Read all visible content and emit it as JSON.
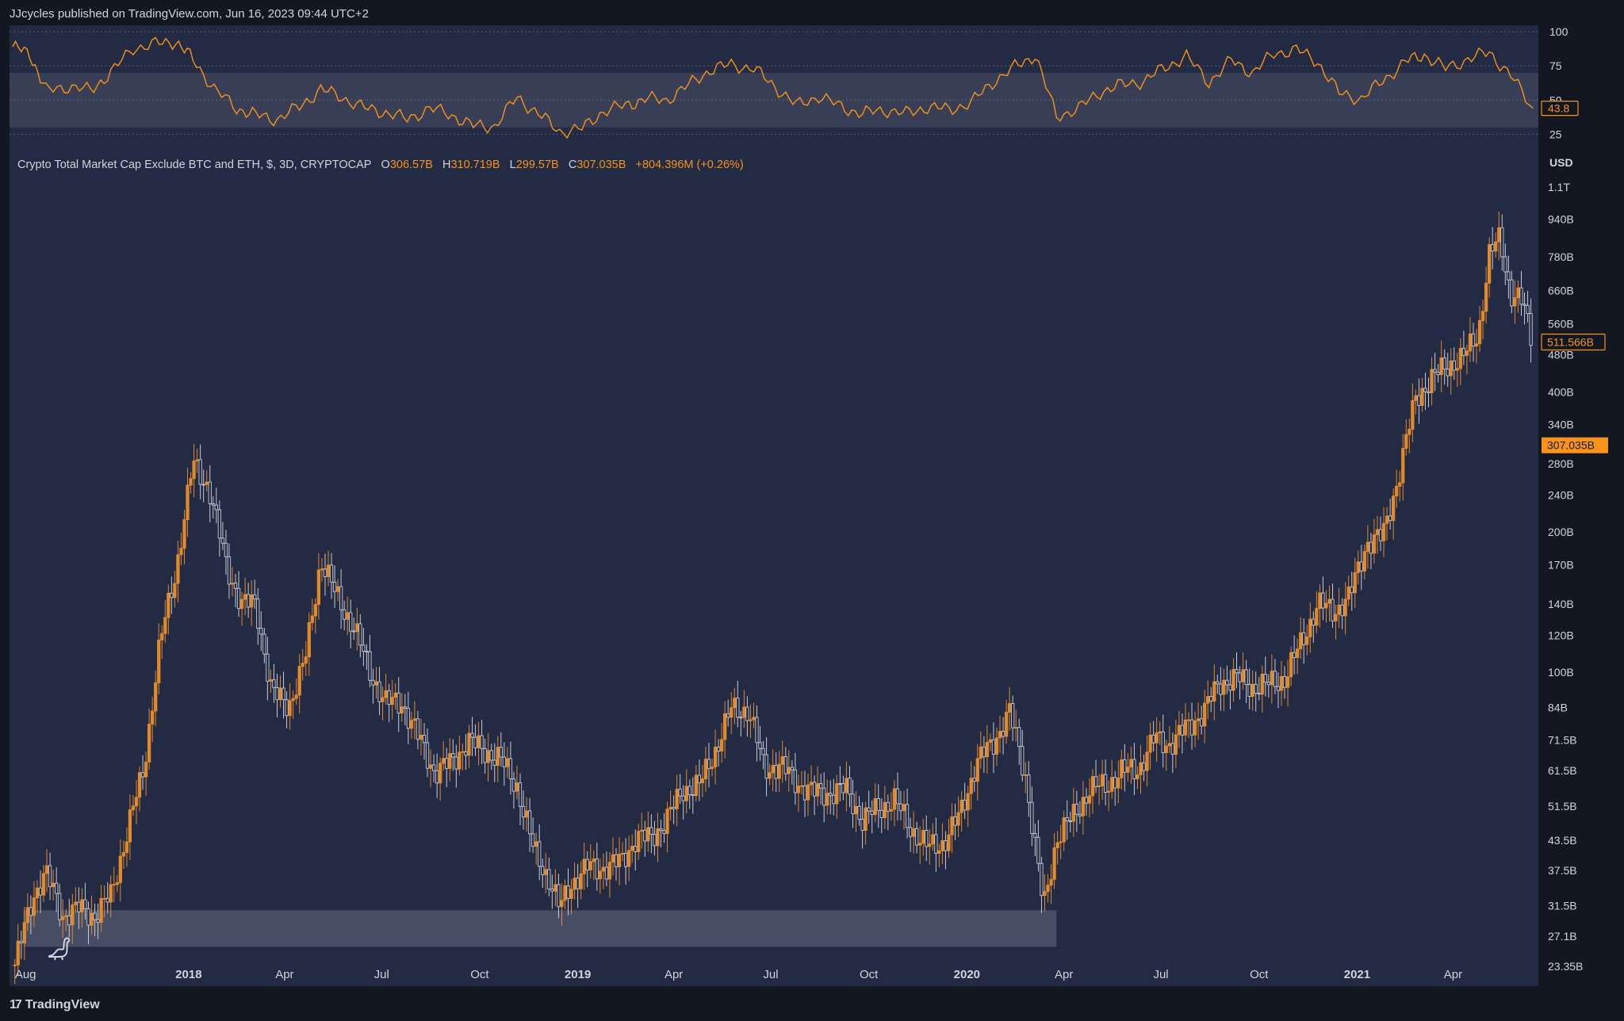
{
  "header": {
    "publish_line": "JJcycles published on TradingView.com, Jun 16, 2023 09:44 UTC+2"
  },
  "legend": {
    "symbol": "Crypto Total Market Cap Exclude BTC and ETH, $, 3D, CRYPTOCAP",
    "o_label": "O",
    "o_value": "306.57B",
    "h_label": "H",
    "h_value": "310.719B",
    "l_label": "L",
    "l_value": "299.57B",
    "c_label": "C",
    "c_value": "307.035B",
    "change": "+804.396M (+0.26%)"
  },
  "footer": {
    "brand": "TradingView",
    "brand_mark": "17"
  },
  "icons": {
    "logo": "tradingview-logo-icon",
    "dino": "dino-icon"
  },
  "colors": {
    "background": "#222a44",
    "frame": "#131722",
    "accent": "#f7931a",
    "up": "#e08a2c",
    "down": "#c7cbd6",
    "band": "#4a4f66",
    "text": "#d1d4dc"
  },
  "chart_data": [
    {
      "type": "line",
      "title": "",
      "series_name": "",
      "ylim": [
        20,
        100
      ],
      "yticks": [
        100,
        75,
        50,
        25
      ],
      "band": [
        30,
        70
      ],
      "last_value_label": "43.8",
      "x": [
        "2017-07-20",
        "2017-08-05",
        "2017-08-20",
        "2017-09-10",
        "2017-10-01",
        "2017-10-20",
        "2017-11-10",
        "2017-12-01",
        "2017-12-20",
        "2018-01-05",
        "2018-01-25",
        "2018-02-15",
        "2018-03-05",
        "2018-03-25",
        "2018-04-15",
        "2018-05-05",
        "2018-05-25",
        "2018-06-15",
        "2018-07-05",
        "2018-07-25",
        "2018-08-15",
        "2018-09-05",
        "2018-09-25",
        "2018-10-15",
        "2018-11-05",
        "2018-11-25",
        "2018-12-15",
        "2019-01-05",
        "2019-01-25",
        "2019-02-15",
        "2019-03-05",
        "2019-03-25",
        "2019-04-15",
        "2019-05-05",
        "2019-05-25",
        "2019-06-15",
        "2019-07-05",
        "2019-07-25",
        "2019-08-15",
        "2019-09-05",
        "2019-09-25",
        "2019-10-15",
        "2019-11-05",
        "2019-11-25",
        "2019-12-15",
        "2020-01-05",
        "2020-01-25",
        "2020-02-15",
        "2020-03-05",
        "2020-03-25",
        "2020-04-15",
        "2020-05-05",
        "2020-05-25",
        "2020-06-15",
        "2020-07-05",
        "2020-07-25",
        "2020-08-15",
        "2020-09-05",
        "2020-09-25",
        "2020-10-15",
        "2020-11-05",
        "2020-11-25",
        "2020-12-15",
        "2021-01-05",
        "2021-01-25",
        "2021-02-15",
        "2021-03-05",
        "2021-03-25",
        "2021-04-15",
        "2021-05-05",
        "2021-05-25",
        "2021-06-15"
      ],
      "values": [
        89,
        84,
        57,
        60,
        57,
        70,
        88,
        91,
        93,
        80,
        58,
        44,
        39,
        36,
        45,
        58,
        52,
        44,
        41,
        36,
        44,
        39,
        31,
        31,
        52,
        40,
        27,
        29,
        42,
        46,
        51,
        50,
        61,
        72,
        76,
        73,
        60,
        46,
        53,
        45,
        40,
        43,
        40,
        45,
        43,
        48,
        63,
        74,
        83,
        38,
        44,
        56,
        61,
        64,
        74,
        82,
        63,
        79,
        70,
        84,
        87,
        78,
        55,
        51,
        64,
        78,
        83,
        73,
        80,
        85,
        68,
        44
      ]
    },
    {
      "type": "candlestick",
      "title": "Crypto Total Market Cap Exclude BTC and ETH, $, 3D, CRYPTOCAP",
      "yscale": "log",
      "ylim": [
        21.5,
        1200
      ],
      "ylabel": "USD",
      "y_unit": "B",
      "yticks": [
        "1.1T",
        "940B",
        "780B",
        "660B",
        "560B",
        "480B",
        "400B",
        "340B",
        "280B",
        "240B",
        "200B",
        "170B",
        "140B",
        "120B",
        "100B",
        "84B",
        "71.5B",
        "61.5B",
        "51.5B",
        "43.5B",
        "37.5B",
        "31.5B",
        "27.1B",
        "23.35B"
      ],
      "ytick_values": [
        1100,
        940,
        780,
        660,
        560,
        480,
        400,
        340,
        280,
        240,
        200,
        170,
        140,
        120,
        100,
        84,
        71.5,
        61.5,
        51.5,
        43.5,
        37.5,
        31.5,
        27.1,
        23.35
      ],
      "x_axis": [
        "Aug",
        "2018",
        "Apr",
        "Jul",
        "Oct",
        "2019",
        "Apr",
        "Jul",
        "Oct",
        "2020",
        "Apr",
        "Jul",
        "Oct",
        "2021",
        "Apr"
      ],
      "x_axis_dates": [
        "2017-08-01",
        "2018-01-01",
        "2018-04-01",
        "2018-07-01",
        "2018-10-01",
        "2019-01-01",
        "2019-04-01",
        "2019-07-01",
        "2019-10-01",
        "2020-01-01",
        "2020-04-01",
        "2020-07-01",
        "2020-10-01",
        "2021-01-01",
        "2021-04-01"
      ],
      "x_axis_bold": [
        "2018",
        "2019",
        "2020",
        "2021"
      ],
      "support_zone": {
        "from": "2017-08-05",
        "to": "2020-03-25",
        "low": 25.7,
        "high": 30.8
      },
      "price_labels": [
        {
          "value": 511.566,
          "text": "511.566B",
          "style": "outline"
        },
        {
          "value": 307.035,
          "text": "307.035B",
          "style": "filled"
        }
      ],
      "close_path": {
        "x": [
          "2017-07-22",
          "2017-08-08",
          "2017-08-20",
          "2017-09-05",
          "2017-09-20",
          "2017-10-05",
          "2017-10-20",
          "2017-11-05",
          "2017-11-20",
          "2017-12-05",
          "2017-12-20",
          "2018-01-05",
          "2018-01-20",
          "2018-02-05",
          "2018-02-20",
          "2018-03-05",
          "2018-03-20",
          "2018-04-05",
          "2018-04-20",
          "2018-05-05",
          "2018-05-20",
          "2018-06-05",
          "2018-06-20",
          "2018-07-05",
          "2018-07-20",
          "2018-08-05",
          "2018-08-20",
          "2018-09-05",
          "2018-09-20",
          "2018-10-05",
          "2018-10-20",
          "2018-11-05",
          "2018-11-20",
          "2018-12-05",
          "2018-12-15",
          "2018-12-25",
          "2019-01-10",
          "2019-01-25",
          "2019-02-10",
          "2019-02-25",
          "2019-03-10",
          "2019-03-25",
          "2019-04-10",
          "2019-04-25",
          "2019-05-10",
          "2019-05-25",
          "2019-06-10",
          "2019-06-25",
          "2019-07-10",
          "2019-07-25",
          "2019-08-10",
          "2019-08-25",
          "2019-09-10",
          "2019-09-25",
          "2019-10-10",
          "2019-10-25",
          "2019-11-10",
          "2019-11-25",
          "2019-12-10",
          "2019-12-25",
          "2020-01-10",
          "2020-01-25",
          "2020-02-10",
          "2020-02-25",
          "2020-03-13",
          "2020-03-25",
          "2020-04-10",
          "2020-04-25",
          "2020-05-10",
          "2020-05-25",
          "2020-06-10",
          "2020-06-25",
          "2020-07-10",
          "2020-07-25",
          "2020-08-10",
          "2020-08-25",
          "2020-09-10",
          "2020-09-25",
          "2020-10-10",
          "2020-10-25",
          "2020-11-10",
          "2020-11-25",
          "2020-12-10",
          "2020-12-25",
          "2021-01-10",
          "2021-01-25",
          "2021-02-10",
          "2021-02-25",
          "2021-03-10",
          "2021-03-25",
          "2021-04-10",
          "2021-04-25",
          "2021-05-05",
          "2021-05-15",
          "2021-05-25",
          "2021-06-05",
          "2021-06-15"
        ],
        "y": [
          23.5,
          33,
          37,
          30,
          31,
          30,
          33,
          46,
          62,
          115,
          165,
          280,
          250,
          170,
          140,
          140,
          90,
          85,
          105,
          175,
          145,
          125,
          100,
          86,
          86,
          72,
          61,
          64,
          71,
          68,
          65,
          57,
          42,
          36,
          31,
          35,
          38,
          38,
          39,
          44,
          44,
          48,
          56,
          57,
          68,
          83,
          83,
          62,
          63,
          58,
          55,
          55,
          56,
          48,
          51,
          53,
          46,
          42,
          43,
          49,
          64,
          70,
          82,
          60,
          31,
          44,
          49,
          56,
          57,
          61,
          62,
          72,
          70,
          76,
          82,
          95,
          97,
          93,
          94,
          97,
          116,
          140,
          135,
          145,
          190,
          195,
          270,
          390,
          420,
          455,
          470,
          540,
          780,
          860,
          650,
          620,
          510
        ]
      }
    }
  ]
}
